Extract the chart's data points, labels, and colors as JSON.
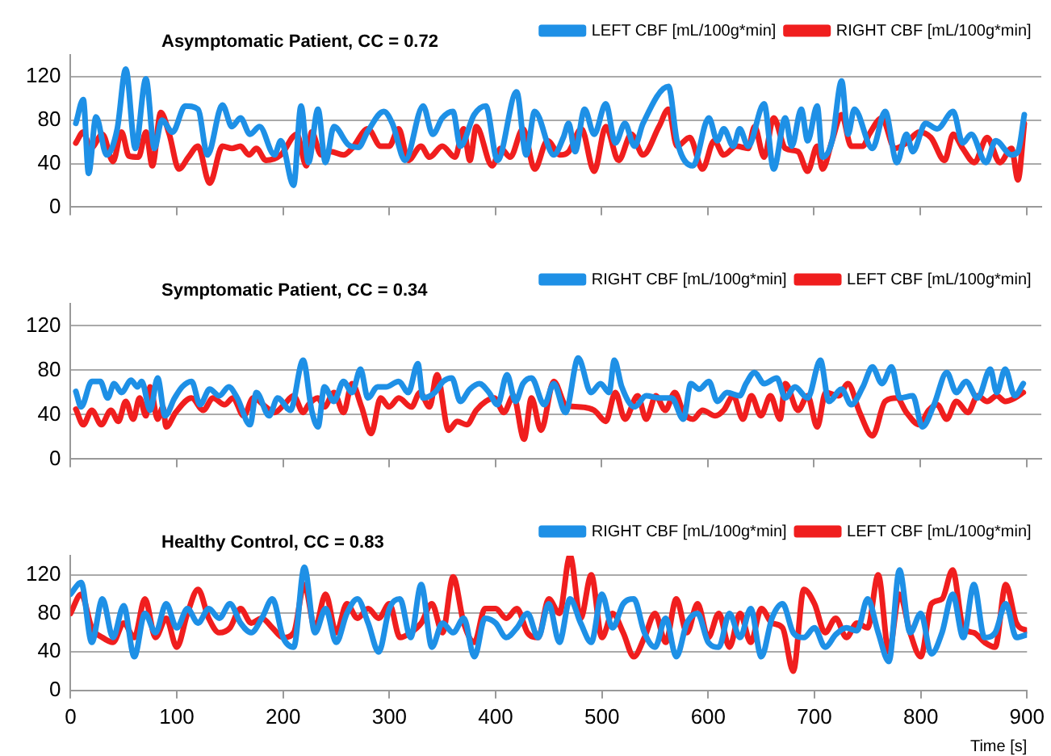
{
  "chart_data": [
    {
      "type": "line",
      "title": "Asymptomatic Patient, CC = 0.72",
      "series": [
        {
          "name": "LEFT CBF [mL/100g*min]",
          "color": "#1e90e6",
          "x": [
            5,
            12,
            17,
            24,
            34,
            44,
            52,
            61,
            71,
            79,
            86,
            96,
            108,
            120,
            129,
            143,
            152,
            160,
            169,
            178,
            192,
            198,
            210,
            217,
            224,
            233,
            240,
            248,
            262,
            271,
            280,
            295,
            303,
            315,
            332,
            341,
            350,
            360,
            367,
            380,
            391,
            402,
            420,
            429,
            437,
            455,
            464,
            469,
            475,
            484,
            493,
            504,
            513,
            522,
            531,
            539,
            563,
            571,
            586,
            601,
            609,
            615,
            624,
            630,
            638,
            653,
            662,
            673,
            679,
            688,
            694,
            703,
            708,
            717,
            726,
            732,
            738,
            755,
            767,
            778,
            787,
            793,
            805,
            816,
            831,
            840,
            848,
            862,
            871,
            886,
            892,
            898
          ],
          "values": [
            77,
            99,
            31,
            83,
            48,
            72,
            127,
            54,
            118,
            54,
            80,
            69,
            93,
            90,
            48,
            94,
            74,
            82,
            67,
            74,
            48,
            61,
            20,
            93,
            41,
            90,
            41,
            74,
            57,
            55,
            70,
            88,
            77,
            43,
            93,
            67,
            82,
            88,
            56,
            85,
            93,
            43,
            106,
            48,
            88,
            48,
            64,
            77,
            51,
            90,
            67,
            95,
            59,
            77,
            56,
            77,
            111,
            61,
            38,
            82,
            61,
            72,
            56,
            72,
            56,
            95,
            35,
            82,
            56,
            90,
            61,
            93,
            46,
            61,
            116,
            67,
            90,
            54,
            88,
            41,
            67,
            51,
            77,
            72,
            88,
            59,
            67,
            41,
            61,
            48,
            51,
            85
          ]
        },
        {
          "name": "RIGHT CBF [mL/100g*min]",
          "color": "#f01e1e",
          "x": [
            5,
            12,
            19,
            30,
            40,
            48,
            55,
            64,
            71,
            77,
            85,
            93,
            102,
            111,
            120,
            131,
            143,
            152,
            160,
            168,
            175,
            184,
            198,
            213,
            222,
            227,
            236,
            245,
            257,
            265,
            280,
            292,
            300,
            309,
            318,
            330,
            338,
            350,
            362,
            370,
            376,
            382,
            397,
            405,
            414,
            426,
            437,
            449,
            461,
            469,
            481,
            493,
            504,
            516,
            528,
            539,
            554,
            563,
            571,
            583,
            595,
            606,
            615,
            627,
            638,
            644,
            653,
            662,
            673,
            685,
            694,
            703,
            708,
            717,
            726,
            735,
            746,
            752,
            764,
            776,
            787,
            799,
            810,
            823,
            831,
            840,
            851,
            863,
            875,
            886,
            892,
            898
          ],
          "values": [
            59,
            69,
            54,
            67,
            42,
            69,
            47,
            46,
            69,
            38,
            87,
            67,
            35,
            46,
            56,
            22,
            56,
            54,
            56,
            48,
            54,
            43,
            48,
            67,
            38,
            69,
            48,
            51,
            48,
            54,
            72,
            56,
            56,
            72,
            43,
            56,
            46,
            56,
            46,
            72,
            43,
            74,
            38,
            54,
            46,
            72,
            35,
            61,
            48,
            51,
            72,
            33,
            74,
            43,
            67,
            48,
            74,
            90,
            56,
            64,
            35,
            61,
            48,
            56,
            54,
            74,
            46,
            82,
            54,
            51,
            33,
            56,
            35,
            61,
            85,
            56,
            56,
            67,
            82,
            54,
            59,
            69,
            64,
            43,
            67,
            54,
            41,
            64,
            41,
            54,
            25,
            77
          ]
        }
      ],
      "xlim": [
        0,
        914
      ],
      "xticks": [
        0,
        100,
        200,
        300,
        400,
        500,
        600,
        700,
        800,
        900
      ],
      "ylim": [
        0,
        140
      ],
      "yticks": [
        0,
        40,
        80,
        120
      ],
      "grid": "y",
      "legend": "top right",
      "tick_labels": "y",
      "marker": "none",
      "line_style": "solid"
    },
    {
      "type": "line",
      "title": "Symptomatic Patient, CC = 0.34",
      "series": [
        {
          "name": "RIGHT CBF [mL/100g*min]",
          "color": "#1e90e6",
          "x": [
            5,
            10,
            20,
            28,
            35,
            41,
            48,
            57,
            63,
            67,
            75,
            82,
            89,
            98,
            105,
            114,
            122,
            131,
            140,
            149,
            157,
            169,
            175,
            187,
            195,
            207,
            219,
            227,
            233,
            239,
            248,
            257,
            265,
            273,
            280,
            289,
            297,
            309,
            318,
            327,
            332,
            343,
            351,
            359,
            367,
            376,
            385,
            394,
            402,
            411,
            419,
            426,
            434,
            446,
            455,
            466,
            478,
            490,
            499,
            507,
            512,
            519,
            531,
            542,
            554,
            566,
            577,
            584,
            592,
            601,
            609,
            618,
            630,
            636,
            644,
            653,
            665,
            673,
            682,
            694,
            706,
            714,
            726,
            735,
            746,
            755,
            764,
            773,
            781,
            793,
            802,
            813,
            825,
            834,
            843,
            854,
            866,
            872,
            880,
            889,
            897
          ],
          "values": [
            61,
            47,
            70,
            70,
            55,
            68,
            60,
            71,
            65,
            70,
            44,
            73,
            39,
            55,
            65,
            70,
            49,
            63,
            57,
            65,
            55,
            31,
            60,
            39,
            55,
            44,
            89,
            44,
            29,
            65,
            52,
            70,
            60,
            81,
            55,
            65,
            65,
            70,
            60,
            86,
            55,
            60,
            70,
            73,
            52,
            63,
            68,
            60,
            49,
            76,
            52,
            68,
            73,
            49,
            68,
            42,
            91,
            60,
            68,
            60,
            89,
            65,
            47,
            57,
            55,
            55,
            36,
            68,
            63,
            70,
            52,
            60,
            57,
            68,
            78,
            68,
            73,
            55,
            65,
            55,
            89,
            52,
            63,
            49,
            65,
            83,
            68,
            83,
            55,
            57,
            29,
            49,
            78,
            60,
            70,
            55,
            81,
            60,
            81,
            57,
            68
          ]
        },
        {
          "name": "LEFT CBF [mL/100g*min]",
          "color": "#f01e1e",
          "x": [
            5,
            12,
            20,
            29,
            38,
            45,
            52,
            59,
            65,
            71,
            75,
            82,
            87,
            90,
            99,
            114,
            125,
            134,
            145,
            153,
            163,
            172,
            184,
            192,
            201,
            210,
            219,
            224,
            233,
            239,
            248,
            257,
            265,
            274,
            283,
            292,
            300,
            309,
            321,
            329,
            338,
            345,
            356,
            364,
            373,
            382,
            391,
            399,
            408,
            417,
            427,
            434,
            443,
            455,
            466,
            478,
            493,
            504,
            513,
            522,
            534,
            542,
            551,
            560,
            569,
            577,
            586,
            595,
            607,
            615,
            624,
            633,
            641,
            650,
            659,
            668,
            673,
            685,
            694,
            703,
            711,
            723,
            732,
            743,
            755,
            767,
            778,
            787,
            799,
            808,
            816,
            825,
            834,
            845,
            854,
            863,
            872,
            880,
            889,
            897
          ],
          "values": [
            45,
            31,
            44,
            31,
            44,
            34,
            52,
            36,
            55,
            39,
            65,
            36,
            47,
            29,
            42,
            55,
            44,
            55,
            49,
            55,
            39,
            55,
            47,
            42,
            49,
            57,
            42,
            49,
            55,
            47,
            60,
            42,
            68,
            47,
            23,
            55,
            47,
            55,
            47,
            60,
            47,
            76,
            26,
            34,
            31,
            44,
            52,
            55,
            42,
            57,
            18,
            55,
            26,
            70,
            49,
            47,
            44,
            34,
            60,
            36,
            57,
            36,
            57,
            44,
            60,
            42,
            36,
            44,
            39,
            44,
            57,
            36,
            57,
            39,
            57,
            36,
            68,
            44,
            57,
            29,
            60,
            57,
            68,
            42,
            21,
            52,
            55,
            42,
            31,
            44,
            49,
            36,
            52,
            42,
            57,
            52,
            57,
            52,
            55,
            60
          ]
        }
      ],
      "xlim": [
        0,
        914
      ],
      "xticks": [
        0,
        100,
        200,
        300,
        400,
        500,
        600,
        700,
        800,
        900
      ],
      "ylim": [
        0,
        140
      ],
      "yticks": [
        0,
        40,
        80,
        120
      ],
      "grid": "y",
      "legend": "top right",
      "tick_labels": "y",
      "marker": "none",
      "line_style": "solid"
    },
    {
      "type": "line",
      "title": "Healthy Control, CC = 0.83",
      "xlabel": "Time [s]",
      "x": [
        0,
        10,
        20,
        30,
        40,
        50,
        60,
        70,
        80,
        90,
        100,
        110,
        120,
        130,
        140,
        150,
        160,
        170,
        180,
        190,
        200,
        210,
        220,
        230,
        240,
        250,
        260,
        270,
        280,
        290,
        300,
        310,
        320,
        330,
        340,
        350,
        360,
        370,
        380,
        390,
        400,
        410,
        420,
        430,
        440,
        450,
        460,
        470,
        480,
        490,
        500,
        510,
        520,
        530,
        540,
        550,
        560,
        570,
        580,
        590,
        600,
        610,
        620,
        630,
        640,
        650,
        660,
        670,
        680,
        690,
        700,
        710,
        720,
        730,
        740,
        750,
        760,
        770,
        780,
        790,
        800,
        810,
        820,
        830,
        840,
        850,
        860,
        870,
        880,
        890,
        900
      ],
      "series": [
        {
          "name": "RIGHT CBF [mL/100g*min]",
          "color": "#1e90e6",
          "values": [
            100,
            112,
            50,
            95,
            55,
            88,
            35,
            80,
            60,
            90,
            65,
            85,
            70,
            85,
            75,
            90,
            70,
            60,
            75,
            95,
            55,
            45,
            128,
            60,
            85,
            50,
            80,
            95,
            70,
            40,
            85,
            95,
            55,
            110,
            45,
            70,
            60,
            75,
            35,
            75,
            70,
            55,
            65,
            80,
            55,
            90,
            50,
            95,
            70,
            50,
            100,
            65,
            90,
            95,
            60,
            45,
            75,
            35,
            70,
            80,
            50,
            45,
            80,
            55,
            85,
            35,
            75,
            90,
            60,
            55,
            65,
            45,
            58,
            65,
            62,
            95,
            60,
            30,
            125,
            60,
            80,
            38,
            60,
            100,
            55,
            110,
            55,
            60,
            90,
            55,
            58
          ]
        },
        {
          "name": "LEFT CBF [mL/100g*min]",
          "color": "#f01e1e",
          "values": [
            80,
            100,
            65,
            55,
            50,
            70,
            55,
            95,
            55,
            75,
            45,
            80,
            105,
            75,
            60,
            65,
            85,
            70,
            75,
            65,
            55,
            60,
            110,
            65,
            100,
            60,
            90,
            75,
            85,
            75,
            90,
            55,
            60,
            70,
            90,
            60,
            118,
            70,
            50,
            85,
            85,
            75,
            85,
            60,
            55,
            95,
            80,
            140,
            75,
            120,
            55,
            80,
            60,
            35,
            55,
            80,
            50,
            95,
            60,
            90,
            55,
            80,
            45,
            80,
            50,
            85,
            70,
            65,
            20,
            105,
            90,
            60,
            75,
            55,
            70,
            65,
            120,
            40,
            100,
            60,
            35,
            90,
            95,
            125,
            65,
            60,
            50,
            45,
            110,
            70,
            62
          ]
        }
      ],
      "xlim": [
        0,
        900
      ],
      "xticks": [
        0,
        100,
        200,
        300,
        400,
        500,
        600,
        700,
        800,
        900
      ],
      "ylim": [
        0,
        140
      ],
      "yticks": [
        0,
        40,
        80,
        120
      ],
      "grid": "y",
      "legend": "top right",
      "marker": "none",
      "line_style": "solid"
    }
  ]
}
